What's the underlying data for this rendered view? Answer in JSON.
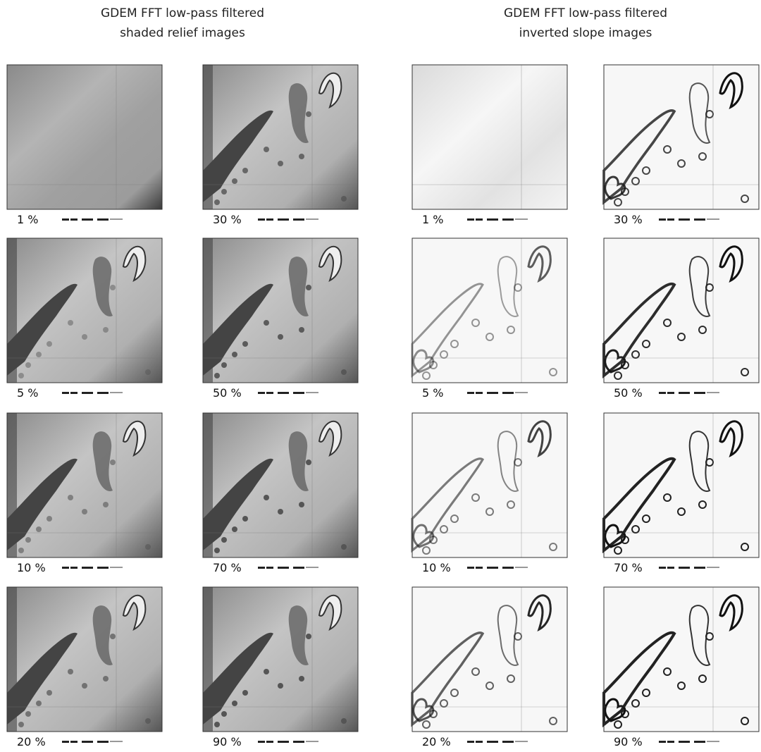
{
  "groups": [
    {
      "title_lines": [
        "GDEM FFT low-pass filtered",
        "shaded relief images"
      ],
      "panels": [
        {
          "label": "1 %"
        },
        {
          "label": "5 %"
        },
        {
          "label": "10 %"
        },
        {
          "label": "20 %"
        },
        {
          "label": "30 %"
        },
        {
          "label": "50 %"
        },
        {
          "label": "70 %"
        },
        {
          "label": "90 %"
        }
      ]
    },
    {
      "title_lines": [
        "GDEM FFT low-pass filtered",
        "inverted slope images"
      ],
      "panels": [
        {
          "label": "1 %"
        },
        {
          "label": "5 %"
        },
        {
          "label": "10 %"
        },
        {
          "label": "20 %"
        },
        {
          "label": "30 %"
        },
        {
          "label": "50 %"
        },
        {
          "label": "70 %"
        },
        {
          "label": "90 %"
        }
      ]
    }
  ]
}
